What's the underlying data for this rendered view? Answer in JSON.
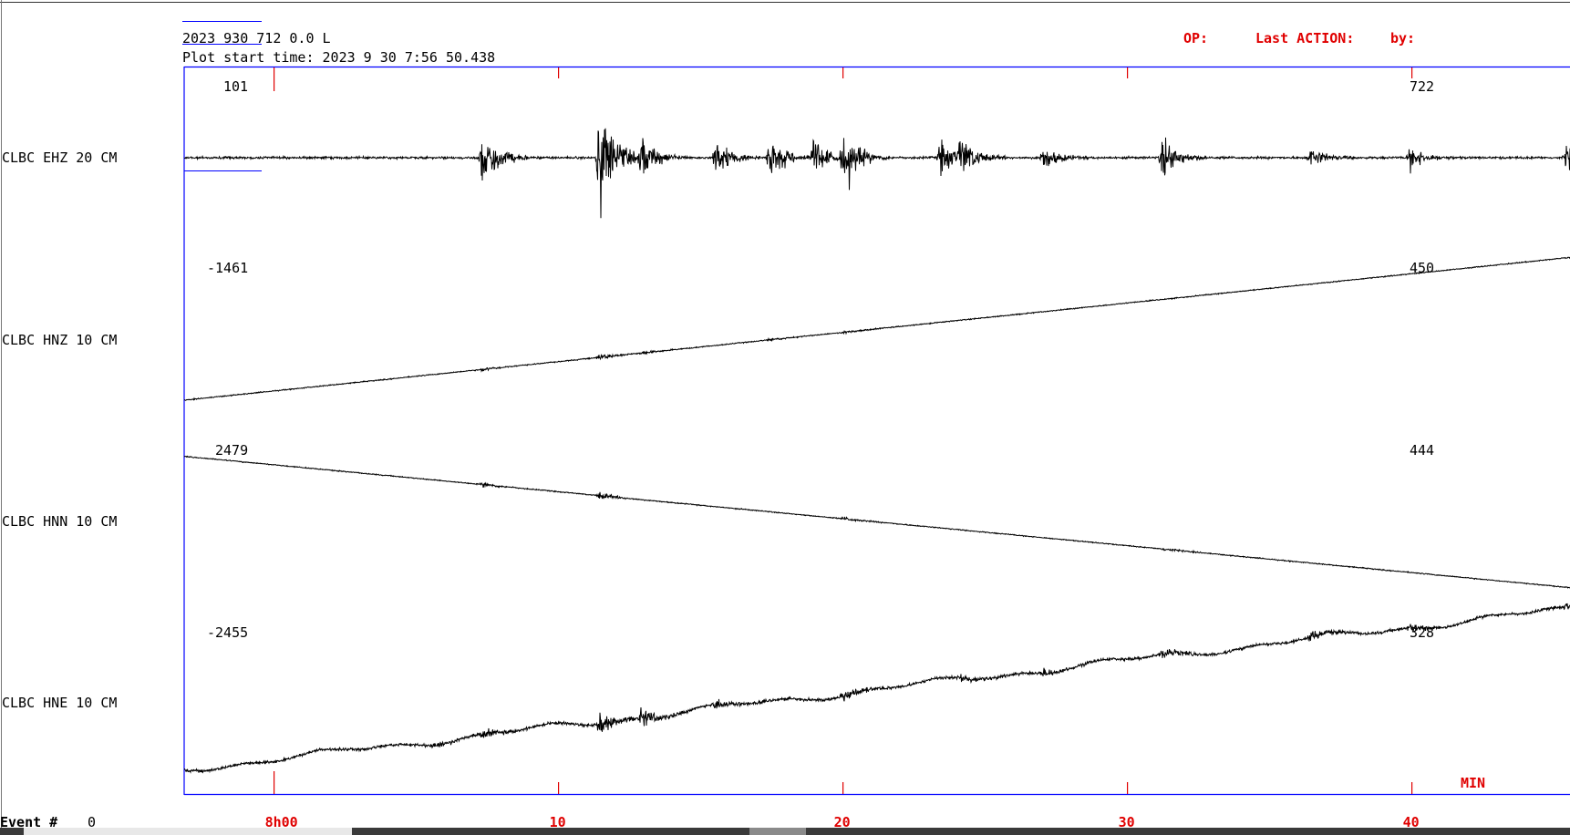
{
  "header": {
    "event_line": "2023  930  712  0.0 L",
    "plot_start_time": "Plot start time: 2023   9 30    7:56  50.438",
    "op_label": "OP:",
    "last_action_label": "Last ACTION:",
    "by_label": "by:"
  },
  "footer": {
    "event_label": "Event #",
    "event_number": "0",
    "min_label": "MIN"
  },
  "colors": {
    "frame": "#0000ff",
    "ticks": "#e00000",
    "trace": "#000000",
    "labels_red": "#e00000"
  },
  "chart_data": {
    "type": "line",
    "title": "",
    "xlabel": "MIN",
    "ylabel": "",
    "x_unit": "minutes after 7:56 50.438",
    "xlim": [
      0,
      54.6
    ],
    "x_ticks": [
      {
        "value": 3.16,
        "label": "8h00"
      },
      {
        "value": 13.16,
        "label": "10"
      },
      {
        "value": 23.16,
        "label": "20"
      },
      {
        "value": 33.16,
        "label": "30"
      },
      {
        "value": 43.16,
        "label": "40"
      }
    ],
    "grid": false,
    "series": [
      {
        "name": "CLBC  EHZ 20 CM",
        "min_label": "101",
        "max_label": "722",
        "trend_start": 0.5,
        "trend_end": 0.5,
        "noise": 0.03,
        "bursts": [
          {
            "t": 10.5,
            "amp": 0.9
          },
          {
            "t": 14.6,
            "amp": 1.6
          },
          {
            "t": 16.1,
            "amp": 0.6
          },
          {
            "t": 18.7,
            "amp": 0.55
          },
          {
            "t": 20.6,
            "amp": 0.6
          },
          {
            "t": 22.1,
            "amp": 0.5
          },
          {
            "t": 23.2,
            "amp": 0.8
          },
          {
            "t": 26.6,
            "amp": 0.45
          },
          {
            "t": 27.3,
            "amp": 0.5
          },
          {
            "t": 30.2,
            "amp": 0.3
          },
          {
            "t": 34.4,
            "amp": 0.6
          },
          {
            "t": 39.6,
            "amp": 0.25
          },
          {
            "t": 43.1,
            "amp": 0.3
          },
          {
            "t": 48.6,
            "amp": 0.3
          },
          {
            "t": 51.0,
            "amp": 0.25
          }
        ]
      },
      {
        "name": "CLBC  HNZ 10 CM",
        "min_label": "-1461",
        "max_label": "450",
        "trend_start": 0.95,
        "trend_end": 0.08,
        "noise": 0.015,
        "bursts": [
          {
            "t": 10.5,
            "amp": 0.05
          },
          {
            "t": 14.6,
            "amp": 0.09
          },
          {
            "t": 16.1,
            "amp": 0.04
          },
          {
            "t": 20.6,
            "amp": 0.03
          },
          {
            "t": 23.2,
            "amp": 0.04
          }
        ]
      },
      {
        "name": "CLBC  HNN 10 CM",
        "min_label": "2479",
        "max_label": "444",
        "trend_start": 0.07,
        "trend_end": 0.87,
        "noise": 0.015,
        "bursts": [
          {
            "t": 10.5,
            "amp": 0.06
          },
          {
            "t": 14.6,
            "amp": 0.1
          },
          {
            "t": 23.2,
            "amp": 0.05
          },
          {
            "t": 34.4,
            "amp": 0.04
          }
        ]
      },
      {
        "name": "CLBC  HNE 10 CM",
        "min_label": "-2455",
        "max_label": "328",
        "trend_start": 0.92,
        "trend_end": 0.0,
        "noise": 0.04,
        "bursts": [
          {
            "t": 8.8,
            "amp": 0.08
          },
          {
            "t": 10.5,
            "amp": 0.1
          },
          {
            "t": 14.6,
            "amp": 0.3
          },
          {
            "t": 16.1,
            "amp": 0.25
          },
          {
            "t": 18.7,
            "amp": 0.14
          },
          {
            "t": 23.2,
            "amp": 0.18
          },
          {
            "t": 27.3,
            "amp": 0.12
          },
          {
            "t": 30.2,
            "amp": 0.1
          },
          {
            "t": 34.4,
            "amp": 0.12
          },
          {
            "t": 39.6,
            "amp": 0.14
          },
          {
            "t": 43.1,
            "amp": 0.1
          },
          {
            "t": 48.6,
            "amp": 0.08
          }
        ]
      }
    ]
  }
}
